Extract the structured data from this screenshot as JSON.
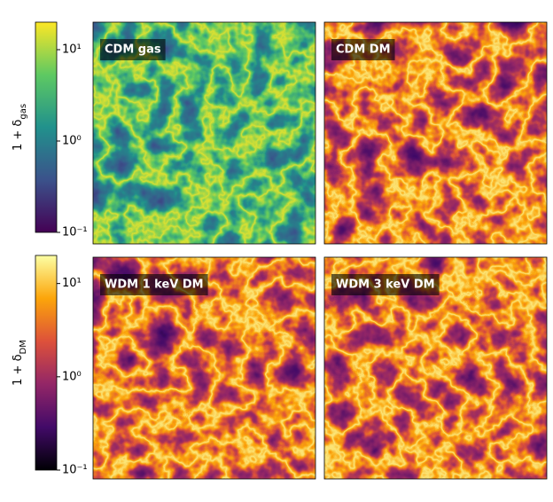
{
  "chart_data": [
    {
      "type": "colorbar",
      "ylabel": {
        "text": "1 + δ",
        "sub": "gas"
      },
      "log_scale": true,
      "ylim": [
        0.1,
        20
      ],
      "yticks": [
        {
          "value": 0.1,
          "label": "10⁻¹"
        },
        {
          "value": 1,
          "label": "10⁰"
        },
        {
          "value": 10,
          "label": "10¹"
        }
      ],
      "colors": [
        "#440154",
        "#3b528b",
        "#21918c",
        "#5ec962",
        "#fde725"
      ]
    },
    {
      "type": "colorbar",
      "ylabel": {
        "text": "1 + δ",
        "sub": "DM"
      },
      "log_scale": true,
      "ylim": [
        0.1,
        20
      ],
      "yticks": [
        {
          "value": 0.1,
          "label": "10⁻¹"
        },
        {
          "value": 1,
          "label": "10⁰"
        },
        {
          "value": 10,
          "label": "10¹"
        }
      ],
      "colors": [
        "#000004",
        "#420a68",
        "#932667",
        "#dd513a",
        "#fca50a",
        "#fcffa4"
      ]
    },
    {
      "type": "image",
      "title": "CDM gas",
      "cmap": 0
    },
    {
      "type": "image",
      "title": "CDM DM",
      "cmap": 1
    },
    {
      "type": "image",
      "title": "WDM 1 keV DM",
      "cmap": 1
    },
    {
      "type": "image",
      "title": "WDM 3 keV DM",
      "cmap": 1
    }
  ]
}
